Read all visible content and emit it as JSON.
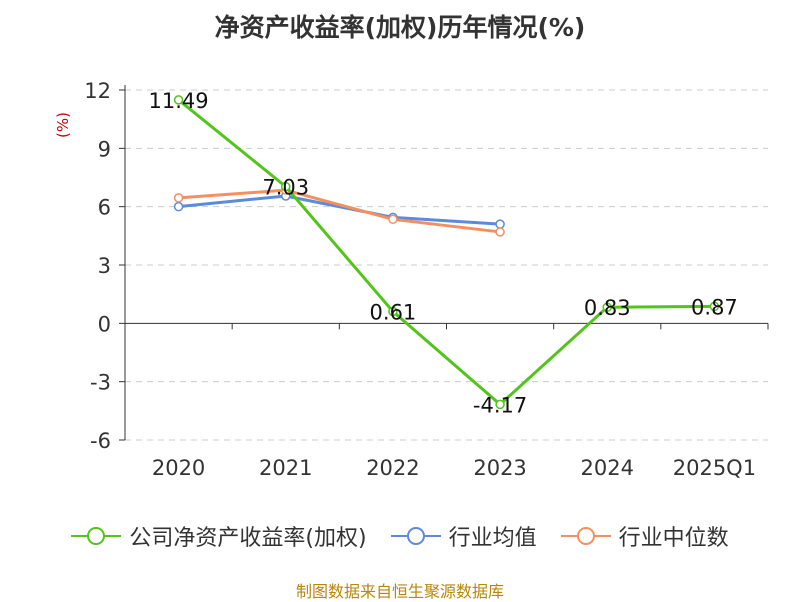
{
  "title": "净资产收益率(加权)历年情况(%)",
  "source": "制图数据来自恒生聚源数据库",
  "chart_data": {
    "type": "line",
    "title": "净资产收益率(加权)历年情况(%)",
    "ylabel": "(%)",
    "xlabel": "",
    "categories": [
      "2020",
      "2021",
      "2022",
      "2023",
      "2024",
      "2025Q1"
    ],
    "ylim": [
      -6,
      12
    ],
    "yticks": [
      12,
      9,
      6,
      3,
      0,
      -3,
      -6
    ],
    "grid": true,
    "legend_position": "bottom",
    "series": [
      {
        "name": "公司净资产收益率(加权)",
        "color": "#52c41a",
        "values": [
          11.49,
          7.03,
          0.61,
          -4.17,
          0.83,
          0.87
        ],
        "labels": [
          "11.49",
          "7.03",
          "0.61",
          "-4.17",
          "0.83",
          "0.87"
        ]
      },
      {
        "name": "行业均值",
        "color": "#5b8bd9",
        "values": [
          6.0,
          6.55,
          5.45,
          5.1,
          null,
          null
        ]
      },
      {
        "name": "行业中位数",
        "color": "#f4905f",
        "values": [
          6.45,
          6.85,
          5.35,
          4.7,
          null,
          null
        ]
      }
    ]
  }
}
